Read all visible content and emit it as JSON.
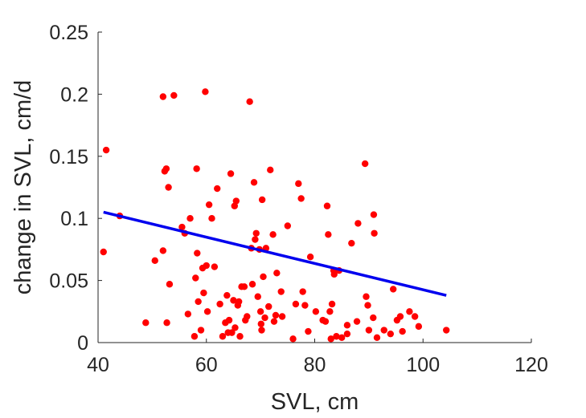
{
  "chart_data": {
    "type": "scatter",
    "title": "",
    "xlabel": "SVL, cm",
    "ylabel": "change in SVL, cm/d",
    "xlim": [
      40,
      120
    ],
    "ylim": [
      0,
      0.25
    ],
    "xticks": [
      40,
      60,
      80,
      100,
      120
    ],
    "xtick_labels": [
      "40",
      "60",
      "80",
      "100",
      "120"
    ],
    "yticks": [
      0,
      0.05,
      0.1,
      0.15,
      0.2,
      0.25
    ],
    "ytick_labels": [
      "0",
      "0.05",
      "0.1",
      "0.15",
      "0.2",
      "0.25"
    ],
    "grid": false,
    "legend": "none",
    "marker_color": "#ff0000",
    "fit_color": "#0000ee",
    "series": [
      {
        "points": [
          [
            41,
            0.073
          ],
          [
            41.5,
            0.155
          ],
          [
            44,
            0.102
          ],
          [
            48.8,
            0.016
          ],
          [
            50.5,
            0.066
          ],
          [
            52,
            0.198
          ],
          [
            52,
            0.074
          ],
          [
            52.3,
            0.138
          ],
          [
            52.6,
            0.14
          ],
          [
            52.7,
            0.016
          ],
          [
            53,
            0.125
          ],
          [
            53.2,
            0.047
          ],
          [
            54,
            0.199
          ],
          [
            55.5,
            0.093
          ],
          [
            56,
            0.088
          ],
          [
            56.6,
            0.023
          ],
          [
            57,
            0.1
          ],
          [
            57.8,
            0.005
          ],
          [
            58,
            0.052
          ],
          [
            58.2,
            0.14
          ],
          [
            58.3,
            0.072
          ],
          [
            58.5,
            0.033
          ],
          [
            59,
            0.01
          ],
          [
            59.3,
            0.06
          ],
          [
            59.5,
            0.04
          ],
          [
            59.8,
            0.202
          ],
          [
            60,
            0.062
          ],
          [
            60.2,
            0.025
          ],
          [
            60.5,
            0.111
          ],
          [
            61,
            0.1
          ],
          [
            61.5,
            0.061
          ],
          [
            62,
            0.124
          ],
          [
            62.5,
            0.031
          ],
          [
            63,
            0.005
          ],
          [
            63.5,
            0.016
          ],
          [
            63.8,
            0.038
          ],
          [
            64,
            0.008
          ],
          [
            64.2,
            0.018
          ],
          [
            64.5,
            0.136
          ],
          [
            64.7,
            0.008
          ],
          [
            65,
            0.034
          ],
          [
            65.2,
            0.11
          ],
          [
            65.3,
            0.012
          ],
          [
            65.5,
            0.114
          ],
          [
            65.8,
            0.03
          ],
          [
            66,
            0.033
          ],
          [
            66.2,
            0.005
          ],
          [
            66.5,
            0.045
          ],
          [
            67,
            0.045
          ],
          [
            67.2,
            0.018
          ],
          [
            67.5,
            0.021
          ],
          [
            68,
            0.194
          ],
          [
            68.3,
            0.076
          ],
          [
            68.5,
            0.047
          ],
          [
            68.8,
            0.129
          ],
          [
            69,
            0.083
          ],
          [
            69.2,
            0.088
          ],
          [
            69.5,
            0.037
          ],
          [
            69.8,
            0.075
          ],
          [
            70,
            0.025
          ],
          [
            70.1,
            0.015
          ],
          [
            70.2,
            0.01
          ],
          [
            70.3,
            0.115
          ],
          [
            70.5,
            0.053
          ],
          [
            70.8,
            0.02
          ],
          [
            71,
            0.076
          ],
          [
            71.5,
            0.029
          ],
          [
            71.8,
            0.139
          ],
          [
            72.3,
            0.087
          ],
          [
            72.5,
            0.017
          ],
          [
            72.8,
            0.022
          ],
          [
            73,
            0.056
          ],
          [
            73.8,
            0.041
          ],
          [
            74,
            0.021
          ],
          [
            75,
            0.094
          ],
          [
            76,
            0.003
          ],
          [
            76.5,
            0.031
          ],
          [
            77,
            0.128
          ],
          [
            77.5,
            0.116
          ],
          [
            77.8,
            0.041
          ],
          [
            78.2,
            0.03
          ],
          [
            78.8,
            0.009
          ],
          [
            79.2,
            0.069
          ],
          [
            80.2,
            0.025
          ],
          [
            81.5,
            0.018
          ],
          [
            82,
            0.017
          ],
          [
            82.3,
            0.11
          ],
          [
            82.5,
            0.087
          ],
          [
            82.8,
            0.025
          ],
          [
            83,
            0.003
          ],
          [
            83.2,
            0.031
          ],
          [
            83.5,
            0.058
          ],
          [
            83.6,
            0.055
          ],
          [
            84,
            0.005
          ],
          [
            84.5,
            0.058
          ],
          [
            85,
            0.004
          ],
          [
            86,
            0.007
          ],
          [
            86,
            0.014
          ],
          [
            86.8,
            0.08
          ],
          [
            87.8,
            0.017
          ],
          [
            88,
            0.096
          ],
          [
            89.3,
            0.144
          ],
          [
            89.5,
            0.037
          ],
          [
            89.8,
            0.03
          ],
          [
            90,
            0.01
          ],
          [
            90.8,
            0.02
          ],
          [
            90.9,
            0.103
          ],
          [
            91,
            0.088
          ],
          [
            91.5,
            0.004
          ],
          [
            92.8,
            0.01
          ],
          [
            94,
            0.007
          ],
          [
            94.5,
            0.043
          ],
          [
            95.2,
            0.018
          ],
          [
            95.8,
            0.021
          ],
          [
            96.2,
            0.009
          ],
          [
            97.5,
            0.025
          ],
          [
            98.5,
            0.021
          ],
          [
            99.2,
            0.013
          ],
          [
            104.3,
            0.01
          ]
        ]
      }
    ],
    "fit_line": {
      "x": [
        41,
        104.3
      ],
      "y": [
        0.105,
        0.038
      ]
    }
  }
}
